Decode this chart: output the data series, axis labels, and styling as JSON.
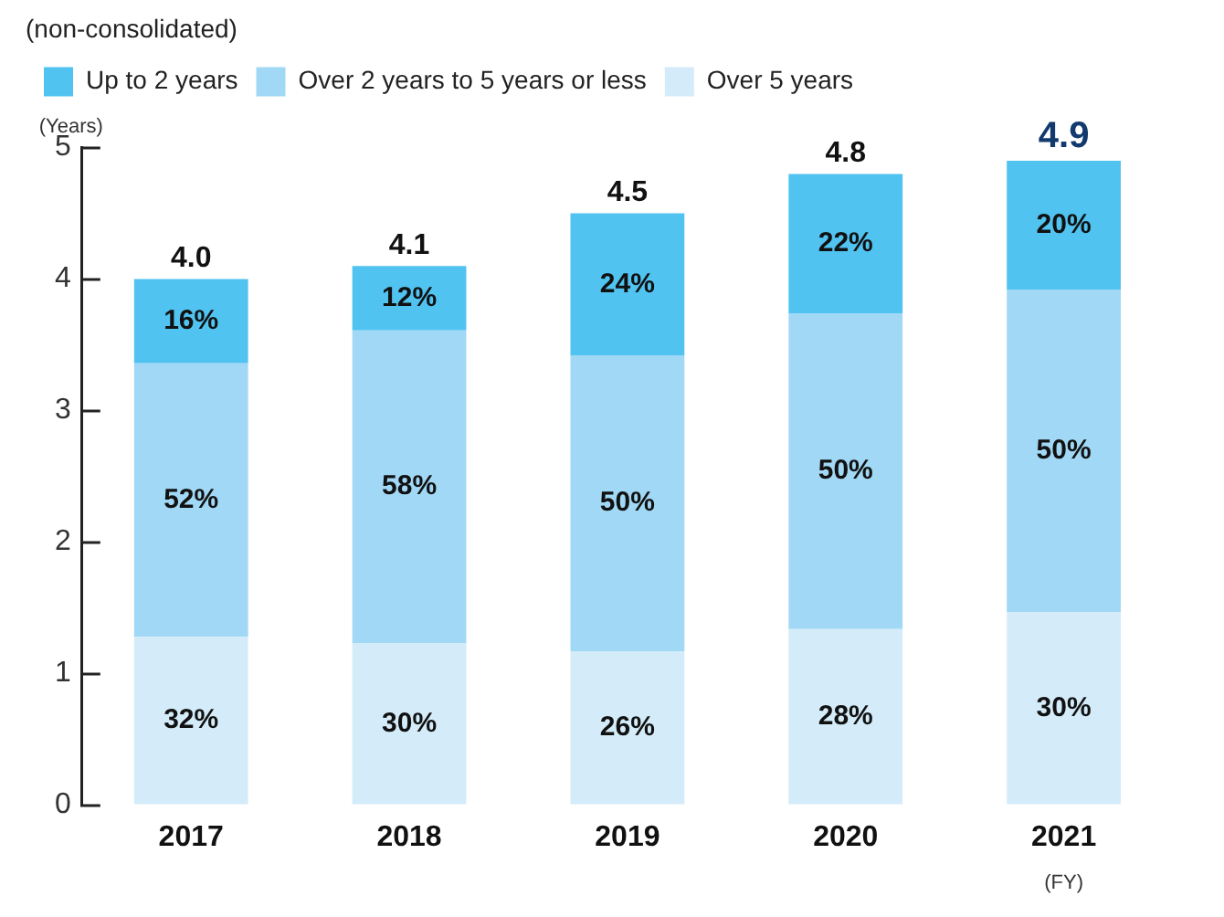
{
  "chart_data": {
    "type": "bar",
    "subtitle": "(non-consolidated)",
    "ylabel": "(Years)",
    "categories": [
      "2017",
      "2018",
      "2019",
      "2020",
      "2021"
    ],
    "stacked": true,
    "series": [
      {
        "name": "Over 5 years",
        "color": "#d4ecf9",
        "values": [
          1.28,
          1.23,
          1.17,
          1.34,
          1.47
        ]
      },
      {
        "name": "Over 2 years to 5 years or less",
        "color": "#a1d8f5",
        "values": [
          2.08,
          2.38,
          2.25,
          2.4,
          2.45
        ]
      },
      {
        "name": "Up to 2 years",
        "color": "#50c3f1",
        "values": [
          0.64,
          0.49,
          1.08,
          1.06,
          0.98
        ]
      }
    ],
    "totals": [
      "4.0",
      "4.1",
      "4.5",
      "4.8",
      "4.9"
    ],
    "ylim": [
      0,
      5
    ],
    "yticks": [
      0,
      1,
      2,
      3,
      4,
      5
    ],
    "grid": false,
    "legend": "top left",
    "annotations": [
      "32%",
      "52%",
      "16%",
      "30%",
      "58%",
      "12%",
      "26%",
      "50%",
      "24%",
      "28%",
      "50%",
      "22%",
      "30%",
      "50%",
      "20%",
      "(FY)"
    ]
  }
}
